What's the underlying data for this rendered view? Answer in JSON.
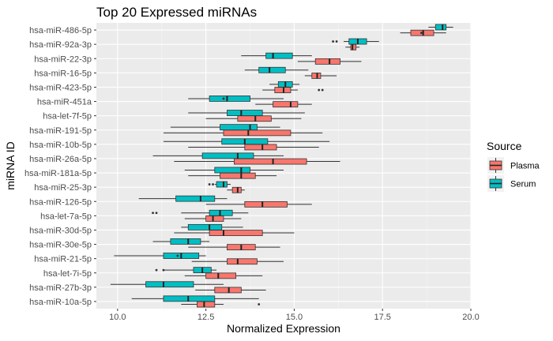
{
  "chart_data": {
    "type": "boxplot",
    "orientation": "horizontal",
    "title": "Top 20 Expressed miRNAs",
    "xlabel": "Normalized Expression",
    "ylabel": "miRNA ID",
    "xlim": [
      9.4,
      20.0
    ],
    "xticks": [
      10.0,
      12.5,
      15.0,
      17.5,
      20.0
    ],
    "xtick_labels": [
      "10.0",
      "12.5",
      "15.0",
      "17.5",
      "20.0"
    ],
    "grid": true,
    "legend": {
      "title": "Source",
      "position": "right",
      "entries": [
        {
          "name": "Plasma",
          "color": "#F8766D"
        },
        {
          "name": "Serum",
          "color": "#00BFC4"
        }
      ]
    },
    "categories": [
      "hsa-miR-486-5p",
      "hsa-miR-92a-3p",
      "hsa-miR-22-3p",
      "hsa-miR-16-5p",
      "hsa-miR-423-5p",
      "hsa-miR-451a",
      "hsa-let-7f-5p",
      "hsa-miR-191-5p",
      "hsa-miR-10b-5p",
      "hsa-miR-26a-5p",
      "hsa-miR-181a-5p",
      "hsa-miR-25-3p",
      "hsa-miR-126-5p",
      "hsa-let-7a-5p",
      "hsa-miR-30d-5p",
      "hsa-miR-30e-5p",
      "hsa-miR-21-5p",
      "hsa-let-7i-5p",
      "hsa-miR-27b-3p",
      "hsa-miR-10a-5p"
    ],
    "series": [
      {
        "name": "Plasma",
        "color": "#F8766D",
        "boxes": [
          {
            "min": 18.0,
            "q1": 18.3,
            "median": 18.65,
            "q3": 18.95,
            "max": 19.3,
            "outliers": [
              18.6
            ]
          },
          {
            "min": 16.45,
            "q1": 16.6,
            "median": 16.65,
            "q3": 16.75,
            "max": 16.85,
            "outliers": []
          },
          {
            "min": 15.1,
            "q1": 15.6,
            "median": 16.0,
            "q3": 16.3,
            "max": 16.9,
            "outliers": []
          },
          {
            "min": 15.3,
            "q1": 15.5,
            "median": 15.65,
            "q3": 15.75,
            "max": 16.2,
            "outliers": []
          },
          {
            "min": 14.1,
            "q1": 14.45,
            "median": 14.7,
            "q3": 14.9,
            "max": 15.1,
            "outliers": [
              15.7,
              15.8
            ]
          },
          {
            "min": 13.9,
            "q1": 14.4,
            "median": 14.9,
            "q3": 15.1,
            "max": 15.5,
            "outliers": []
          },
          {
            "min": 12.5,
            "q1": 13.4,
            "median": 13.9,
            "q3": 14.35,
            "max": 15.2,
            "outliers": []
          },
          {
            "min": 11.3,
            "q1": 13.0,
            "median": 13.7,
            "q3": 14.9,
            "max": 15.8,
            "outliers": []
          },
          {
            "min": 12.0,
            "q1": 13.6,
            "median": 14.1,
            "q3": 14.5,
            "max": 15.7,
            "outliers": []
          },
          {
            "min": 11.6,
            "q1": 13.3,
            "median": 14.4,
            "q3": 15.35,
            "max": 16.3,
            "outliers": []
          },
          {
            "min": 12.0,
            "q1": 12.9,
            "median": 13.5,
            "q3": 13.9,
            "max": 14.5,
            "outliers": []
          },
          {
            "min": 13.1,
            "q1": 13.25,
            "median": 13.4,
            "q3": 13.5,
            "max": 13.6,
            "outliers": []
          },
          {
            "min": 12.5,
            "q1": 13.6,
            "median": 14.1,
            "q3": 14.8,
            "max": 15.5,
            "outliers": []
          },
          {
            "min": 11.9,
            "q1": 12.5,
            "median": 12.7,
            "q3": 13.0,
            "max": 13.5,
            "outliers": []
          },
          {
            "min": 11.6,
            "q1": 12.6,
            "median": 13.0,
            "q3": 14.1,
            "max": 15.0,
            "outliers": []
          },
          {
            "min": 12.0,
            "q1": 13.1,
            "median": 13.5,
            "q3": 13.9,
            "max": 14.6,
            "outliers": []
          },
          {
            "min": 12.1,
            "q1": 13.1,
            "median": 13.4,
            "q3": 13.95,
            "max": 14.7,
            "outliers": []
          },
          {
            "min": 11.9,
            "q1": 12.5,
            "median": 12.85,
            "q3": 13.35,
            "max": 14.1,
            "outliers": []
          },
          {
            "min": 12.2,
            "q1": 12.75,
            "median": 13.15,
            "q3": 13.5,
            "max": 14.2,
            "outliers": []
          },
          {
            "min": 11.8,
            "q1": 12.25,
            "median": 12.45,
            "q3": 12.75,
            "max": 13.0,
            "outliers": [
              14.0
            ]
          }
        ]
      },
      {
        "name": "Serum",
        "color": "#00BFC4",
        "boxes": [
          {
            "min": 18.8,
            "q1": 19.0,
            "median": 19.2,
            "q3": 19.3,
            "max": 19.5,
            "outliers": []
          },
          {
            "min": 16.4,
            "q1": 16.55,
            "median": 16.8,
            "q3": 17.05,
            "max": 17.4,
            "outliers": [
              16.1,
              16.2
            ]
          },
          {
            "min": 13.5,
            "q1": 14.2,
            "median": 14.4,
            "q3": 14.95,
            "max": 15.5,
            "outliers": []
          },
          {
            "min": 13.6,
            "q1": 14.0,
            "median": 14.3,
            "q3": 14.75,
            "max": 15.4,
            "outliers": []
          },
          {
            "min": 14.3,
            "q1": 14.55,
            "median": 14.75,
            "q3": 14.95,
            "max": 15.15,
            "outliers": []
          },
          {
            "min": 12.0,
            "q1": 12.6,
            "median": 13.1,
            "q3": 13.75,
            "max": 14.7,
            "outliers": [
              13.0
            ]
          },
          {
            "min": 12.0,
            "q1": 13.1,
            "median": 13.5,
            "q3": 14.1,
            "max": 15.3,
            "outliers": []
          },
          {
            "min": 11.5,
            "q1": 12.9,
            "median": 13.75,
            "q3": 13.95,
            "max": 14.6,
            "outliers": []
          },
          {
            "min": 11.3,
            "q1": 12.95,
            "median": 13.6,
            "q3": 14.25,
            "max": 16.0,
            "outliers": []
          },
          {
            "min": 11.0,
            "q1": 12.4,
            "median": 13.4,
            "q3": 13.85,
            "max": 14.7,
            "outliers": []
          },
          {
            "min": 11.9,
            "q1": 12.75,
            "median": 13.5,
            "q3": 13.75,
            "max": 14.7,
            "outliers": []
          },
          {
            "min": 12.75,
            "q1": 12.8,
            "median": 13.0,
            "q3": 13.1,
            "max": 13.2,
            "outliers": [
              12.6,
              12.7
            ]
          },
          {
            "min": 10.6,
            "q1": 11.65,
            "median": 12.35,
            "q3": 12.75,
            "max": 13.1,
            "outliers": []
          },
          {
            "min": 11.8,
            "q1": 12.6,
            "median": 12.9,
            "q3": 13.25,
            "max": 13.7,
            "outliers": [
              11.0,
              11.1
            ]
          },
          {
            "min": 11.8,
            "q1": 12.0,
            "median": 12.6,
            "q3": 12.95,
            "max": 13.55,
            "outliers": []
          },
          {
            "min": 11.0,
            "q1": 11.5,
            "median": 12.0,
            "q3": 12.35,
            "max": 12.6,
            "outliers": []
          },
          {
            "min": 9.9,
            "q1": 11.3,
            "median": 11.8,
            "q3": 12.3,
            "max": 12.5,
            "outliers": [
              11.7
            ]
          },
          {
            "min": 11.3,
            "q1": 12.15,
            "median": 12.4,
            "q3": 12.65,
            "max": 12.8,
            "outliers": [
              11.1,
              11.3
            ]
          },
          {
            "min": 9.8,
            "q1": 10.8,
            "median": 11.3,
            "q3": 12.15,
            "max": 13.0,
            "outliers": []
          },
          {
            "min": 10.4,
            "q1": 11.3,
            "median": 12.0,
            "q3": 12.75,
            "max": 14.0,
            "outliers": []
          }
        ]
      }
    ]
  }
}
